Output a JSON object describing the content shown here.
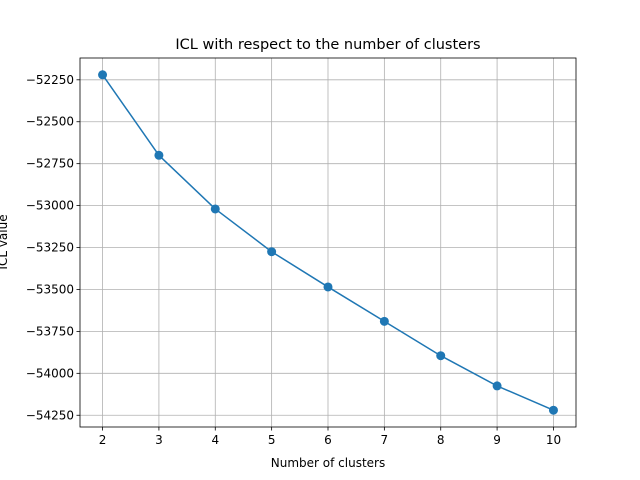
{
  "chart_data": {
    "type": "line",
    "title": "ICL with respect to the number of clusters",
    "xlabel": "Number of clusters",
    "ylabel": "ICL value",
    "x": [
      2,
      3,
      4,
      5,
      6,
      7,
      8,
      9,
      10
    ],
    "series": [
      {
        "values": [
          -52220,
          -52700,
          -53020,
          -53275,
          -53485,
          -53690,
          -53895,
          -54075,
          -54220
        ],
        "color": "#1f77b4",
        "marker": "circle"
      }
    ],
    "xticks": [
      2,
      3,
      4,
      5,
      6,
      7,
      8,
      9,
      10
    ],
    "xtick_labels": [
      "2",
      "3",
      "4",
      "5",
      "6",
      "7",
      "8",
      "9",
      "10"
    ],
    "yticks": [
      -52250,
      -52500,
      -52750,
      -53000,
      -53250,
      -53500,
      -53750,
      -54000,
      -54250
    ],
    "ytick_labels": [
      "−52250",
      "−52500",
      "−52750",
      "−53000",
      "−53250",
      "−53500",
      "−53750",
      "−54000",
      "−54250"
    ],
    "xlim": [
      1.6,
      10.4
    ],
    "ylim": [
      -54320,
      -52120
    ],
    "grid": true,
    "grid_color": "#b0b0b0",
    "legend": false
  }
}
